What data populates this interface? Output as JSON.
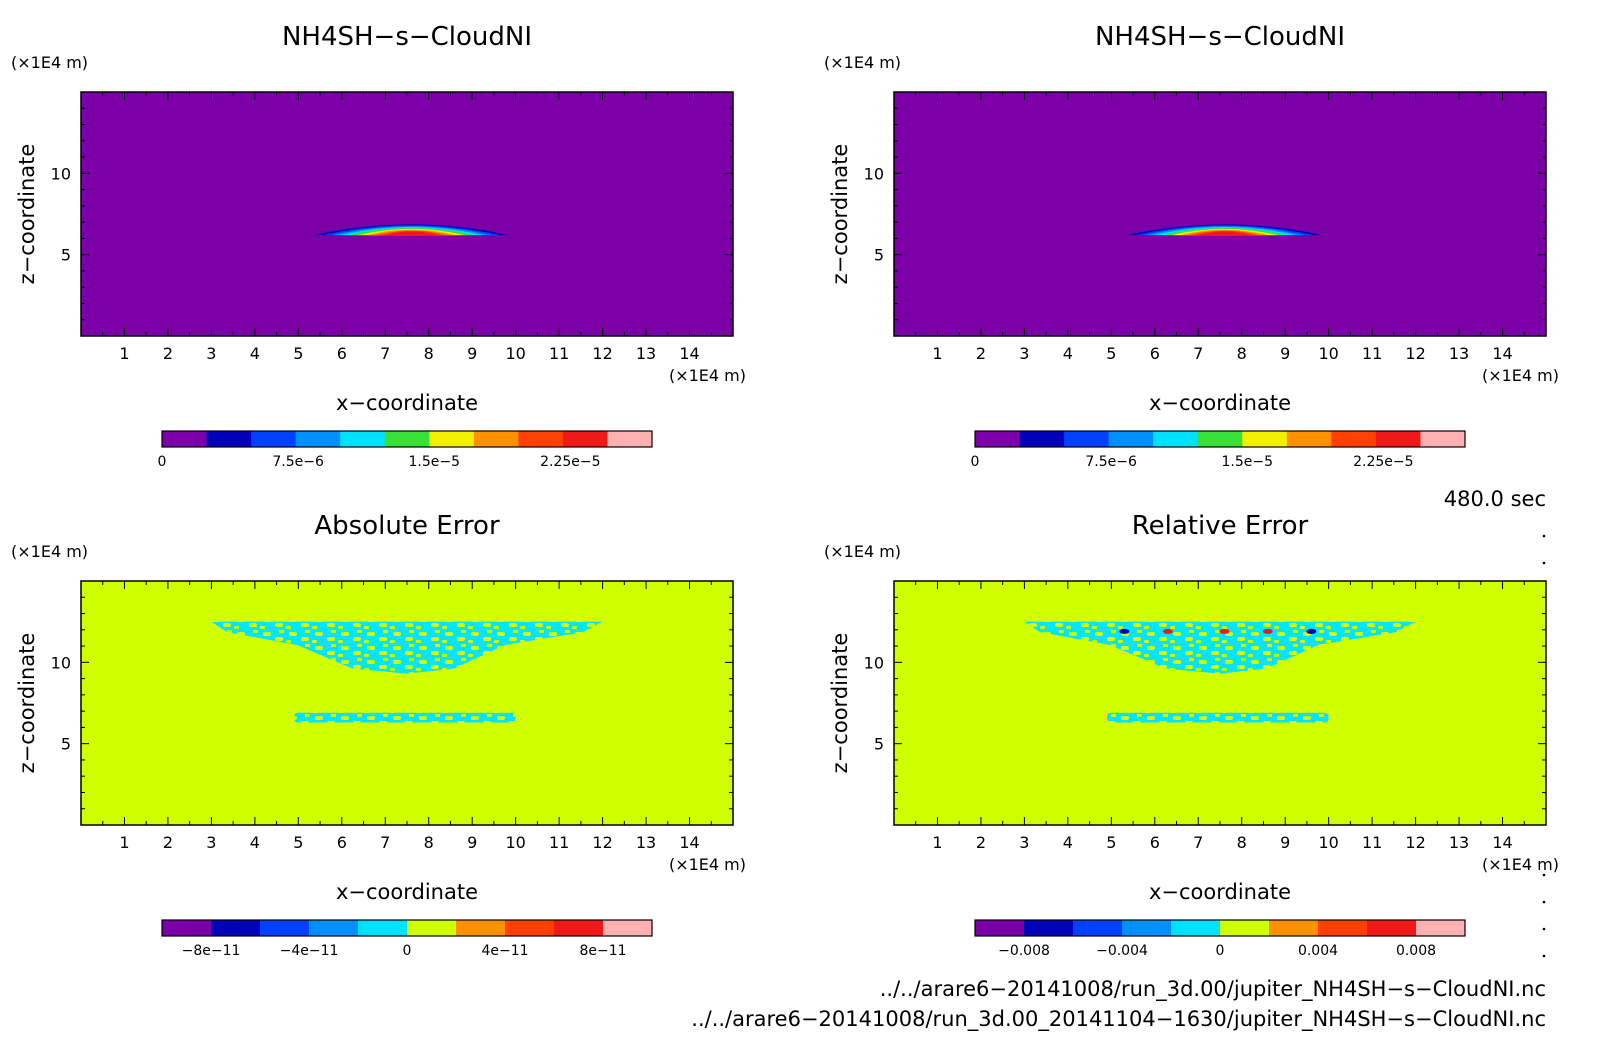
{
  "panels": [
    {
      "title": "NH4SH−s−CloudNI",
      "z_unit": "(×1E4 m)",
      "x_unit": "(×1E4 m)",
      "xlabel": "x−coordinate",
      "ylabel": "z−coordinate",
      "x_ticks": [
        "1",
        "2",
        "3",
        "4",
        "5",
        "6",
        "7",
        "8",
        "9",
        "10",
        "11",
        "12",
        "13",
        "14"
      ],
      "y_ticks": [
        "5",
        "10"
      ],
      "colorbar": {
        "colors": [
          "#7c00a8",
          "#0000b8",
          "#0040ff",
          "#0090ff",
          "#00e0ff",
          "#38e038",
          "#f0f000",
          "#ff9000",
          "#ff4000",
          "#f01818",
          "#ffb0b0"
        ],
        "labels": [
          "0",
          "7.5e−6",
          "1.5e−5",
          "2.25e−5"
        ]
      }
    },
    {
      "title": "NH4SH−s−CloudNI",
      "z_unit": "(×1E4 m)",
      "x_unit": "(×1E4 m)",
      "xlabel": "x−coordinate",
      "ylabel": "z−coordinate",
      "x_ticks": [
        "1",
        "2",
        "3",
        "4",
        "5",
        "6",
        "7",
        "8",
        "9",
        "10",
        "11",
        "12",
        "13",
        "14"
      ],
      "y_ticks": [
        "5",
        "10"
      ],
      "colorbar": {
        "colors": [
          "#7c00a8",
          "#0000b8",
          "#0040ff",
          "#0090ff",
          "#00e0ff",
          "#38e038",
          "#f0f000",
          "#ff9000",
          "#ff4000",
          "#f01818",
          "#ffb0b0"
        ],
        "labels": [
          "0",
          "7.5e−6",
          "1.5e−5",
          "2.25e−5"
        ]
      }
    },
    {
      "title": "Absolute Error",
      "z_unit": "(×1E4 m)",
      "x_unit": "(×1E4 m)",
      "xlabel": "x−coordinate",
      "ylabel": "z−coordinate",
      "x_ticks": [
        "1",
        "2",
        "3",
        "4",
        "5",
        "6",
        "7",
        "8",
        "9",
        "10",
        "11",
        "12",
        "13",
        "14"
      ],
      "y_ticks": [
        "5",
        "10"
      ],
      "colorbar": {
        "colors": [
          "#7c00a8",
          "#0000b8",
          "#0040ff",
          "#0090ff",
          "#00e0ff",
          "#d0ff00",
          "#ff9000",
          "#ff4000",
          "#f01818",
          "#ffb0b0"
        ],
        "labels": [
          "−8e−11",
          "−4e−11",
          "0",
          "4e−11",
          "8e−11"
        ]
      }
    },
    {
      "title": "Relative Error",
      "z_unit": "(×1E4 m)",
      "x_unit": "(×1E4 m)",
      "xlabel": "x−coordinate",
      "ylabel": "z−coordinate",
      "x_ticks": [
        "1",
        "2",
        "3",
        "4",
        "5",
        "6",
        "7",
        "8",
        "9",
        "10",
        "11",
        "12",
        "13",
        "14"
      ],
      "y_ticks": [
        "5",
        "10"
      ],
      "colorbar": {
        "colors": [
          "#7c00a8",
          "#0000b8",
          "#0040ff",
          "#0090ff",
          "#00e0ff",
          "#d0ff00",
          "#ff9000",
          "#ff4000",
          "#f01818",
          "#ffb0b0"
        ],
        "labels": [
          "−0.008",
          "−0.004",
          "0",
          "0.004",
          "0.008"
        ]
      }
    }
  ],
  "time_label": "480.0 sec",
  "files": [
    "../../arare6−20141008/run_3d.00/jupiter_NH4SH−s−CloudNI.nc",
    "../../arare6−20141008/run_3d.00_20141104−1630/jupiter_NH4SH−s−CloudNI.nc"
  ],
  "chart_data": [
    {
      "type": "heatmap",
      "title": "NH4SH−s−CloudNI",
      "xlabel": "x−coordinate",
      "ylabel": "z−coordinate",
      "xlim": [
        0,
        15
      ],
      "ylim": [
        0,
        15
      ],
      "x_ticks": [
        1,
        2,
        3,
        4,
        5,
        6,
        7,
        8,
        9,
        10,
        11,
        12,
        13,
        14
      ],
      "y_ticks": [
        5,
        10
      ],
      "background_level": 0,
      "colorbar_levels": [
        0,
        2.5e-06,
        5e-06,
        7.5e-06,
        1e-05,
        1.25e-05,
        1.5e-05,
        1.75e-05,
        2e-05,
        2.25e-05,
        2.5e-05,
        2.75e-05
      ],
      "features": [
        {
          "shape": "cloud_lens",
          "x_range": [
            5.3,
            9.8
          ],
          "z_range": [
            6.2,
            6.9
          ],
          "peak_x": 7.6,
          "peak_z": 6.4,
          "peak_value": 2.4e-05
        }
      ]
    },
    {
      "type": "heatmap",
      "title": "NH4SH−s−CloudNI",
      "xlabel": "x−coordinate",
      "ylabel": "z−coordinate",
      "xlim": [
        0,
        15
      ],
      "ylim": [
        0,
        15
      ],
      "x_ticks": [
        1,
        2,
        3,
        4,
        5,
        6,
        7,
        8,
        9,
        10,
        11,
        12,
        13,
        14
      ],
      "y_ticks": [
        5,
        10
      ],
      "background_level": 0,
      "colorbar_levels": [
        0,
        2.5e-06,
        5e-06,
        7.5e-06,
        1e-05,
        1.25e-05,
        1.5e-05,
        1.75e-05,
        2e-05,
        2.25e-05,
        2.5e-05,
        2.75e-05
      ],
      "features": [
        {
          "shape": "cloud_lens",
          "x_range": [
            5.3,
            9.8
          ],
          "z_range": [
            6.2,
            6.9
          ],
          "peak_x": 7.6,
          "peak_z": 6.4,
          "peak_value": 2.4e-05
        }
      ]
    },
    {
      "type": "heatmap",
      "title": "Absolute Error",
      "xlabel": "x−coordinate",
      "ylabel": "z−coordinate",
      "xlim": [
        0,
        15
      ],
      "ylim": [
        0,
        15
      ],
      "x_ticks": [
        1,
        2,
        3,
        4,
        5,
        6,
        7,
        8,
        9,
        10,
        11,
        12,
        13,
        14
      ],
      "y_ticks": [
        5,
        10
      ],
      "background_level": 0,
      "colorbar_levels": [
        -1e-10,
        -8e-11,
        -6e-11,
        -4e-11,
        -2e-11,
        0,
        2e-11,
        4e-11,
        6e-11,
        8e-11,
        1e-10
      ],
      "features": [
        {
          "shape": "speckle",
          "x_range": [
            3.0,
            12.0
          ],
          "z_range": [
            9.3,
            12.5
          ],
          "value": -1e-11
        },
        {
          "shape": "speckle",
          "x_range": [
            4.9,
            10.0
          ],
          "z_range": [
            6.3,
            6.9
          ],
          "value": -1e-11
        }
      ]
    },
    {
      "type": "heatmap",
      "title": "Relative Error",
      "xlabel": "x−coordinate",
      "ylabel": "z−coordinate",
      "xlim": [
        0,
        15
      ],
      "ylim": [
        0,
        15
      ],
      "x_ticks": [
        1,
        2,
        3,
        4,
        5,
        6,
        7,
        8,
        9,
        10,
        11,
        12,
        13,
        14
      ],
      "y_ticks": [
        5,
        10
      ],
      "background_level": 0,
      "colorbar_levels": [
        -0.01,
        -0.008,
        -0.006,
        -0.004,
        -0.002,
        0,
        0.002,
        0.004,
        0.006,
        0.008,
        0.01
      ],
      "features": [
        {
          "shape": "speckle",
          "x_range": [
            3.0,
            12.0
          ],
          "z_range": [
            9.3,
            12.5
          ],
          "value": -0.001
        },
        {
          "shape": "speckle",
          "x_range": [
            4.9,
            10.0
          ],
          "z_range": [
            6.3,
            6.9
          ],
          "value": -0.001
        },
        {
          "shape": "spots",
          "z": 11.9,
          "x": [
            5.3,
            6.3,
            7.6,
            8.6,
            9.6
          ],
          "values": [
            -0.009,
            0.009,
            0.009,
            0.009,
            -0.009
          ]
        }
      ]
    }
  ]
}
